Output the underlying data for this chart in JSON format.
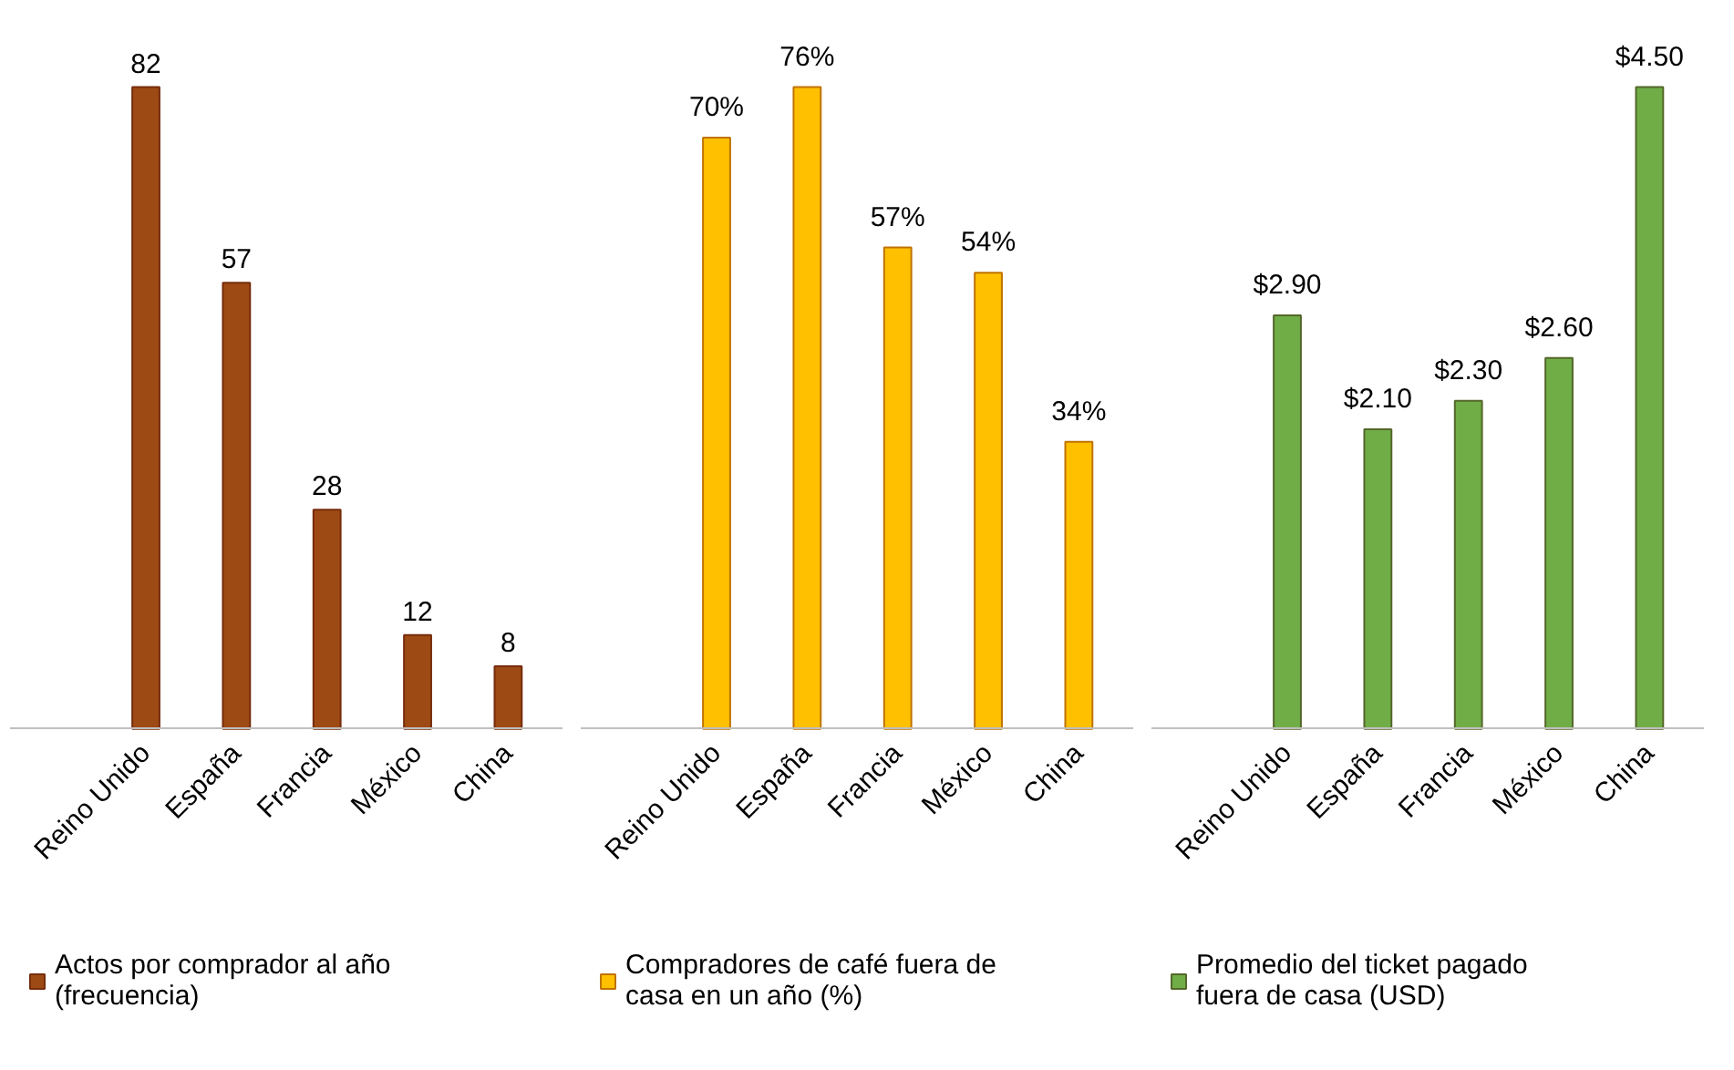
{
  "chart_data": [
    {
      "type": "bar",
      "categories": [
        "Reino Unido",
        "España",
        "Francia",
        "México",
        "China"
      ],
      "series": [
        {
          "name": "Actos por comprador al año (frecuencia)",
          "color": "#9e4a14",
          "values": [
            82,
            57,
            28,
            12,
            8
          ],
          "value_labels": [
            "82",
            "57",
            "28",
            "12",
            "8"
          ]
        }
      ],
      "legend": "bottom"
    },
    {
      "type": "bar",
      "categories": [
        "Reino Unido",
        "España",
        "Francia",
        "México",
        "China"
      ],
      "series": [
        {
          "name": "Compradores de café fuera de casa en un año (%)",
          "color": "#ffc000",
          "values": [
            70,
            76,
            57,
            54,
            34
          ],
          "value_labels": [
            "70%",
            "76%",
            "57%",
            "54%",
            "34%"
          ]
        }
      ],
      "legend": "bottom"
    },
    {
      "type": "bar",
      "categories": [
        "Reino Unido",
        "España",
        "Francia",
        "México",
        "China"
      ],
      "series": [
        {
          "name": "Promedio del ticket pagado fuera de casa (USD)",
          "color": "#70ad47",
          "values": [
            2.9,
            2.1,
            2.3,
            2.6,
            4.5
          ],
          "value_labels": [
            "$2.90",
            "$2.10",
            "$2.30",
            "$2.60",
            "$4.50"
          ]
        }
      ],
      "legend": "bottom"
    }
  ]
}
